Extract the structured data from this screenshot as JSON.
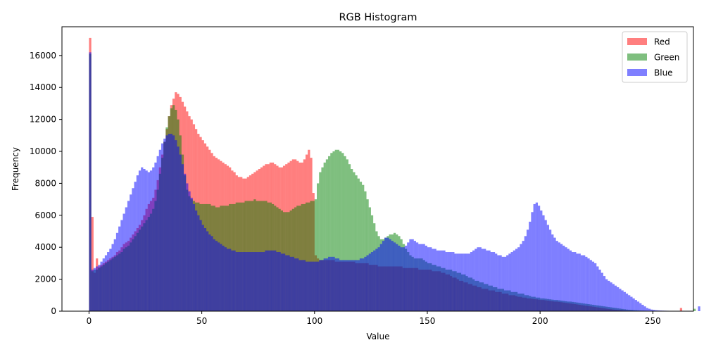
{
  "chart_data": {
    "type": "bar",
    "title": "RGB Histogram",
    "xlabel": "Value",
    "ylabel": "Frequency",
    "xlim": [
      -12,
      268
    ],
    "ylim": [
      0,
      17800
    ],
    "x_ticks": [
      0,
      50,
      100,
      150,
      200,
      250
    ],
    "y_ticks": [
      0,
      2000,
      4000,
      6000,
      8000,
      10000,
      12000,
      14000,
      16000
    ],
    "bin_start": 0,
    "bin_width": 1,
    "bar_opacity": 0.5,
    "legend_position": "top-right",
    "series": [
      {
        "name": "Red",
        "color": "#ff0000",
        "values": [
          17100,
          5900,
          2400,
          3300,
          2800,
          2900,
          3000,
          3100,
          3200,
          3300,
          3400,
          3500,
          3700,
          3800,
          4000,
          4200,
          4300,
          4400,
          4600,
          4800,
          5000,
          5200,
          5400,
          5700,
          6000,
          6400,
          6700,
          6900,
          7100,
          7600,
          8200,
          9000,
          9800,
          10600,
          11400,
          12200,
          12900,
          13300,
          13700,
          13600,
          13400,
          13100,
          12800,
          12500,
          12200,
          12000,
          11700,
          11400,
          11100,
          10900,
          10700,
          10500,
          10300,
          10100,
          9900,
          9700,
          9600,
          9500,
          9400,
          9300,
          9200,
          9100,
          9000,
          8800,
          8700,
          8500,
          8400,
          8400,
          8300,
          8300,
          8400,
          8500,
          8600,
          8700,
          8800,
          8900,
          9000,
          9100,
          9200,
          9200,
          9300,
          9300,
          9200,
          9100,
          9000,
          9000,
          9100,
          9200,
          9300,
          9400,
          9500,
          9500,
          9400,
          9300,
          9300,
          9500,
          9800,
          10100,
          9600,
          7400,
          3500,
          3300,
          3200,
          3200,
          3200,
          3200,
          3200,
          3200,
          3200,
          3100,
          3100,
          3100,
          3100,
          3100,
          3100,
          3100,
          3100,
          3100,
          3000,
          3000,
          3000,
          3000,
          3000,
          3000,
          2900,
          2900,
          2900,
          2900,
          2800,
          2800,
          2800,
          2800,
          2800,
          2800,
          2800,
          2800,
          2800,
          2800,
          2800,
          2700,
          2700,
          2700,
          2700,
          2700,
          2700,
          2700,
          2600,
          2600,
          2600,
          2600,
          2600,
          2600,
          2500,
          2500,
          2500,
          2500,
          2400,
          2400,
          2300,
          2300,
          2200,
          2100,
          2100,
          2000,
          1900,
          1900,
          1800,
          1800,
          1700,
          1700,
          1600,
          1600,
          1500,
          1500,
          1400,
          1400,
          1400,
          1300,
          1300,
          1300,
          1200,
          1200,
          1200,
          1100,
          1100,
          1100,
          1000,
          1000,
          1000,
          950,
          900,
          900,
          850,
          850,
          800,
          800,
          780,
          760,
          740,
          720,
          700,
          700,
          680,
          660,
          640,
          620,
          600,
          600,
          580,
          560,
          540,
          520,
          500,
          480,
          460,
          440,
          420,
          400,
          380,
          360,
          340,
          320,
          300,
          280,
          260,
          240,
          220,
          200,
          180,
          160,
          140,
          120,
          100,
          90,
          80,
          70,
          60,
          50,
          40,
          35,
          30,
          25,
          20,
          18,
          16,
          14,
          12,
          10,
          8,
          8,
          6,
          6,
          5,
          4,
          4,
          3,
          3,
          2,
          2,
          2,
          1,
          1,
          200
        ]
      },
      {
        "name": "Green",
        "color": "#008000",
        "values": [
          16100,
          2500,
          2600,
          2600,
          2700,
          2800,
          2900,
          3000,
          3100,
          3200,
          3300,
          3400,
          3500,
          3600,
          3700,
          3900,
          4000,
          4100,
          4300,
          4500,
          4700,
          4900,
          5100,
          5300,
          5500,
          5700,
          5900,
          6100,
          6400,
          6900,
          7600,
          8600,
          9600,
          10600,
          11500,
          12200,
          12700,
          12900,
          12600,
          12000,
          11000,
          9800,
          8500,
          7600,
          7200,
          7000,
          6900,
          6800,
          6800,
          6700,
          6700,
          6700,
          6700,
          6700,
          6600,
          6600,
          6500,
          6500,
          6600,
          6600,
          6600,
          6600,
          6700,
          6700,
          6700,
          6800,
          6800,
          6800,
          6800,
          6900,
          6900,
          6900,
          6900,
          7000,
          6900,
          6900,
          6900,
          6900,
          6900,
          6800,
          6800,
          6700,
          6600,
          6500,
          6400,
          6300,
          6200,
          6200,
          6200,
          6300,
          6400,
          6500,
          6600,
          6600,
          6700,
          6700,
          6800,
          6800,
          6900,
          6900,
          7000,
          8000,
          8700,
          9000,
          9300,
          9500,
          9700,
          9900,
          10000,
          10100,
          10100,
          10000,
          9900,
          9700,
          9500,
          9200,
          8900,
          8700,
          8500,
          8300,
          8100,
          7900,
          7500,
          7000,
          6500,
          6000,
          5500,
          5000,
          4700,
          4500,
          4500,
          4600,
          4700,
          4800,
          4800,
          4900,
          4800,
          4700,
          4500,
          4200,
          3900,
          3700,
          3500,
          3400,
          3300,
          3300,
          3300,
          3300,
          3200,
          3100,
          3000,
          3000,
          2900,
          2900,
          2800,
          2800,
          2700,
          2700,
          2600,
          2600,
          2600,
          2500,
          2500,
          2400,
          2400,
          2300,
          2300,
          2200,
          2100,
          2100,
          2000,
          1900,
          1900,
          1800,
          1800,
          1700,
          1700,
          1600,
          1600,
          1500,
          1500,
          1400,
          1400,
          1400,
          1300,
          1300,
          1300,
          1200,
          1200,
          1200,
          1100,
          1100,
          1100,
          1000,
          1000,
          950,
          900,
          900,
          850,
          850,
          800,
          800,
          780,
          760,
          740,
          720,
          700,
          700,
          680,
          660,
          640,
          620,
          600,
          600,
          580,
          560,
          540,
          520,
          500,
          480,
          460,
          440,
          420,
          400,
          380,
          360,
          340,
          320,
          300,
          280,
          260,
          240,
          220,
          200,
          180,
          160,
          140,
          120,
          100,
          90,
          80,
          70,
          60,
          50,
          40,
          35,
          30,
          25,
          20,
          18,
          16,
          14,
          12,
          10,
          8,
          8,
          6,
          6,
          5,
          4,
          4,
          3,
          3,
          2,
          2,
          2,
          1,
          1,
          150
        ]
      },
      {
        "name": "Blue",
        "color": "#0000ff",
        "values": [
          16200,
          2600,
          2700,
          2800,
          2900,
          3100,
          3300,
          3500,
          3700,
          3900,
          4200,
          4500,
          4900,
          5300,
          5700,
          6100,
          6500,
          6900,
          7300,
          7700,
          8100,
          8500,
          8800,
          9000,
          8900,
          8800,
          8700,
          8800,
          9000,
          9300,
          9700,
          10100,
          10500,
          10800,
          11000,
          11100,
          11100,
          11000,
          10700,
          10300,
          9800,
          9200,
          8600,
          8000,
          7500,
          7100,
          6700,
          6300,
          6000,
          5700,
          5400,
          5200,
          5000,
          4800,
          4700,
          4500,
          4400,
          4300,
          4200,
          4100,
          4000,
          3900,
          3900,
          3800,
          3800,
          3700,
          3700,
          3700,
          3700,
          3700,
          3700,
          3700,
          3700,
          3700,
          3700,
          3700,
          3700,
          3700,
          3800,
          3800,
          3800,
          3800,
          3800,
          3700,
          3700,
          3600,
          3600,
          3500,
          3500,
          3400,
          3400,
          3300,
          3300,
          3200,
          3200,
          3200,
          3100,
          3100,
          3100,
          3100,
          3100,
          3100,
          3200,
          3200,
          3300,
          3300,
          3400,
          3400,
          3400,
          3300,
          3300,
          3200,
          3200,
          3200,
          3200,
          3200,
          3200,
          3200,
          3200,
          3200,
          3300,
          3300,
          3400,
          3500,
          3600,
          3700,
          3800,
          3900,
          4000,
          4200,
          4400,
          4600,
          4600,
          4500,
          4400,
          4300,
          4200,
          4100,
          4000,
          4000,
          4100,
          4300,
          4500,
          4500,
          4400,
          4300,
          4200,
          4200,
          4200,
          4100,
          4000,
          4000,
          3900,
          3900,
          3800,
          3800,
          3800,
          3800,
          3700,
          3700,
          3700,
          3700,
          3600,
          3600,
          3600,
          3600,
          3600,
          3600,
          3600,
          3700,
          3800,
          3900,
          4000,
          4000,
          3900,
          3900,
          3800,
          3800,
          3700,
          3700,
          3600,
          3500,
          3500,
          3400,
          3400,
          3500,
          3600,
          3700,
          3800,
          3900,
          4000,
          4200,
          4400,
          4700,
          5100,
          5600,
          6200,
          6700,
          6800,
          6600,
          6300,
          6000,
          5700,
          5400,
          5100,
          4800,
          4600,
          4400,
          4300,
          4200,
          4100,
          4000,
          3900,
          3800,
          3700,
          3700,
          3600,
          3600,
          3500,
          3500,
          3400,
          3300,
          3200,
          3100,
          3000,
          2800,
          2600,
          2400,
          2200,
          2000,
          1900,
          1800,
          1700,
          1600,
          1500,
          1400,
          1300,
          1200,
          1100,
          1000,
          900,
          800,
          700,
          600,
          500,
          400,
          300,
          200,
          150,
          100,
          80,
          60,
          50,
          40,
          35,
          30,
          25,
          20,
          18,
          15,
          12,
          10,
          8,
          6,
          5,
          4,
          3,
          2,
          1,
          1,
          300
        ]
      }
    ]
  }
}
